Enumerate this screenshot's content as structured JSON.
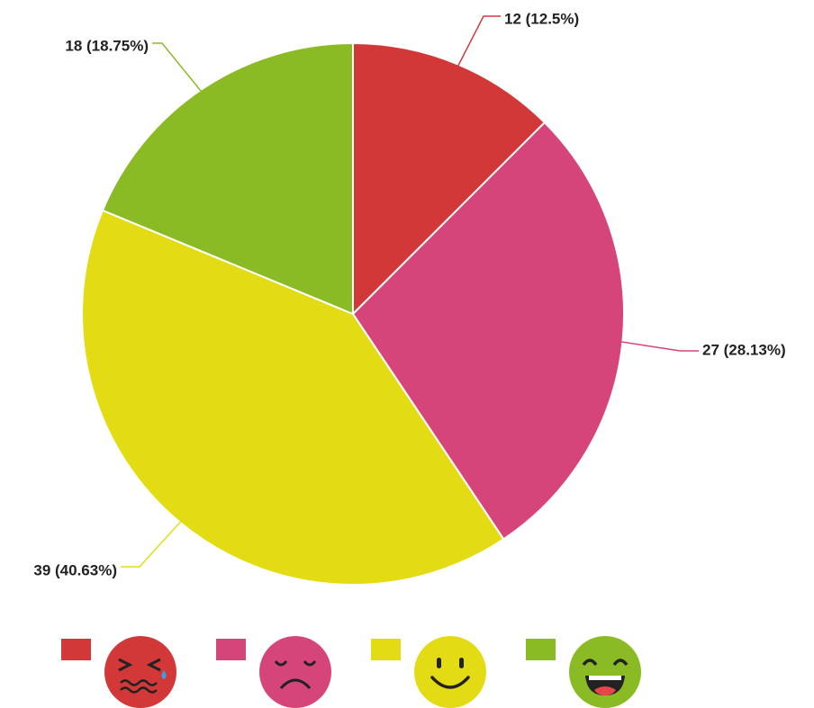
{
  "chart_data": {
    "type": "pie",
    "categories": [
      null,
      null,
      null,
      null
    ],
    "values": [
      12,
      27,
      39,
      18
    ],
    "value_labels": [
      "12 (12.5%)",
      "27 (28.13%)",
      "39 (40.63%)",
      "18 (18.75%)"
    ],
    "colors": [
      "#d33838",
      "#d6457a",
      "#e3dc14",
      "#8abb24"
    ],
    "legend": "bottom"
  }
}
